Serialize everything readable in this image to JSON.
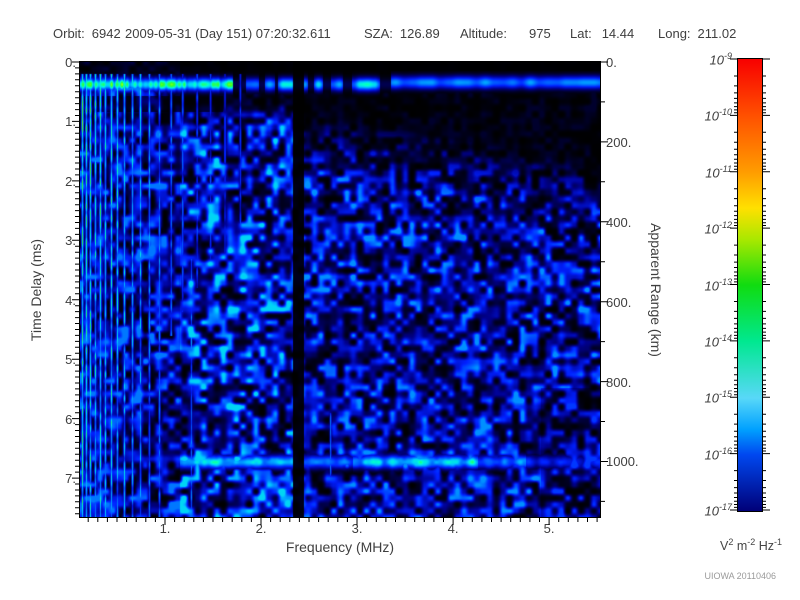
{
  "header": {
    "orbit_label": "Orbit:",
    "orbit_value": "6942",
    "datetime": "2009-05-31 (Day 151) 07:20:32.611",
    "sza_label": "SZA:",
    "sza_value": "126.89",
    "altitude_label": "Altitude:",
    "altitude_value": "975",
    "lat_label": "Lat:",
    "lat_value": "14.44",
    "long_label": "Long:",
    "long_value": "211.02"
  },
  "footer": {
    "credit": "UIOWA 20110406"
  },
  "chart_data": {
    "type": "heatmap",
    "description": "Radar sounder ionogram spectrogram: received spectral density vs frequency and time delay",
    "xlabel": "Frequency (MHz)",
    "ylabel_left": "Time Delay (ms)",
    "ylabel_right": "Apparent Range (km)",
    "x_axis": {
      "min": 0.115,
      "max": 5.53,
      "major_ticks": [
        1,
        2,
        3,
        4,
        5
      ],
      "major_tick_labels": [
        "1.",
        "2.",
        "3.",
        "4.",
        "5."
      ],
      "minor_step": 0.1
    },
    "y_axis_left": {
      "min": 0,
      "max": 7.655,
      "major_ticks": [
        0,
        1,
        2,
        3,
        4,
        5,
        6,
        7
      ],
      "major_tick_labels": [
        "0.",
        "1.",
        "2.",
        "3.",
        "4.",
        "5.",
        "6.",
        "7."
      ],
      "minor_step": 0.1
    },
    "y_axis_right": {
      "min": 0,
      "max": 1139,
      "major_ticks": [
        0,
        200,
        400,
        600,
        800,
        1000
      ],
      "major_tick_labels": [
        "0.",
        "200.",
        "400.",
        "600.",
        "800.",
        "1000."
      ],
      "minor_step": 100
    },
    "colorbar": {
      "scale": "log",
      "exponents": [
        -9,
        -10,
        -11,
        -12,
        -13,
        -14,
        -15,
        -16,
        -17
      ],
      "unit_parts": [
        {
          "t": "V",
          "s": "2"
        },
        {
          "t": " m",
          "s": "-2"
        },
        {
          "t": " Hz",
          "s": "-1"
        }
      ],
      "gradient_stops": [
        [
          0.0,
          "#f80000"
        ],
        [
          0.125,
          "#ff5000"
        ],
        [
          0.25,
          "#ff9c00"
        ],
        [
          0.33,
          "#ffe000"
        ],
        [
          0.4,
          "#a8e800"
        ],
        [
          0.5,
          "#10dc10"
        ],
        [
          0.625,
          "#00e890"
        ],
        [
          0.75,
          "#58d8f8"
        ],
        [
          0.82,
          "#00a0ff"
        ],
        [
          0.875,
          "#0048f0"
        ],
        [
          1.0,
          "#000078"
        ]
      ]
    },
    "colormap_stops": [
      [
        0.0,
        "#000000"
      ],
      [
        0.16,
        "#00008c"
      ],
      [
        0.33,
        "#0020ff"
      ],
      [
        0.48,
        "#0078ff"
      ],
      [
        0.6,
        "#00c8ff"
      ],
      [
        0.7,
        "#00ffd0"
      ],
      [
        0.78,
        "#20ff70"
      ],
      [
        0.87,
        "#30ff30"
      ],
      [
        0.94,
        "#90ff10"
      ],
      [
        1.0,
        "#c8ff00"
      ]
    ],
    "features": {
      "ionosphere_echo_band": {
        "ms0": 0.2,
        "ms1": 0.57,
        "center_ms": 0.37,
        "striated_green_until_mhz": 1.7,
        "blobby_until_mhz": 3.35,
        "intensity_left": 0.97,
        "intensity_right": 0.56
      },
      "plasma_harmonic_stripes": [
        {
          "mhz": 0.136,
          "amp": 0.95
        },
        {
          "mhz": 0.177,
          "amp": 0.88
        },
        {
          "mhz": 0.219,
          "amp": 0.93
        },
        {
          "mhz": 0.271,
          "amp": 0.85
        },
        {
          "mhz": 0.323,
          "amp": 0.9
        },
        {
          "mhz": 0.375,
          "amp": 0.82
        },
        {
          "mhz": 0.438,
          "amp": 0.86
        },
        {
          "mhz": 0.5,
          "amp": 0.8
        },
        {
          "mhz": 0.573,
          "amp": 0.78
        },
        {
          "mhz": 0.657,
          "amp": 0.74
        },
        {
          "mhz": 0.74,
          "amp": 0.72
        },
        {
          "mhz": 0.833,
          "amp": 0.66
        },
        {
          "mhz": 0.938,
          "amp": 0.6
        }
      ],
      "partial_streaks": [
        {
          "mhz": 1.06,
          "amp": 0.55,
          "to_ms": 4.6
        },
        {
          "mhz": 1.18,
          "amp": 0.5,
          "to_ms": 4.2
        },
        {
          "mhz": 1.33,
          "amp": 0.48,
          "to_ms": 3.8
        },
        {
          "mhz": 1.47,
          "amp": 0.45,
          "to_ms": 3.4
        },
        {
          "mhz": 1.62,
          "amp": 0.42,
          "to_ms": 3.2
        },
        {
          "mhz": 1.78,
          "amp": 0.4,
          "to_ms": 3.0
        }
      ],
      "cyan_streaks": [
        {
          "mhz": 1.27,
          "ms0": 3.3,
          "ms1": 7.6,
          "amp": 0.55
        },
        {
          "mhz": 2.72,
          "ms0": 5.9,
          "ms1": 6.95,
          "amp": 0.5
        }
      ],
      "surface_reflection_band": {
        "center_ms": 6.72,
        "half_width_ms": 0.11,
        "segments": [
          {
            "mhz0": 1.15,
            "mhz1": 2.33,
            "amp": 0.8
          },
          {
            "mhz0": 2.44,
            "mhz1": 2.95,
            "amp": 0.55
          },
          {
            "mhz0": 2.95,
            "mhz1": 4.25,
            "amp": 0.85
          },
          {
            "mhz0": 4.25,
            "mhz1": 4.75,
            "amp": 0.62
          },
          {
            "mhz0": 4.75,
            "mhz1": 5.53,
            "amp": 0.42
          }
        ]
      },
      "absorption_gap": {
        "mhz0": 2.33,
        "mhz1": 2.44
      },
      "background_noise": {
        "low_freq_amp": 0.4,
        "mid_freq_amp": 0.52,
        "high_freq_amp": 0.43
      }
    }
  }
}
